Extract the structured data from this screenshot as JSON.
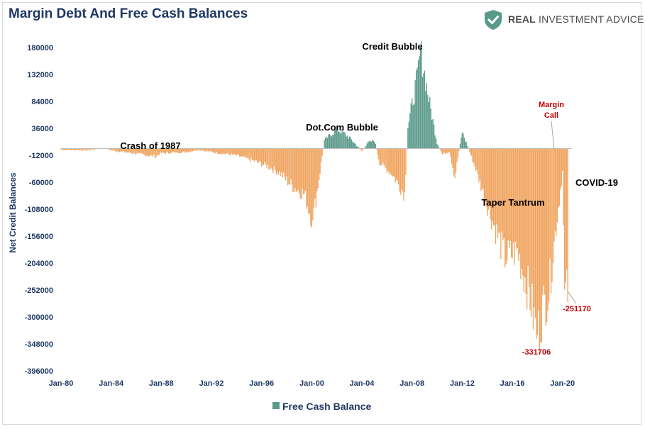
{
  "title": "Margin Debt And Free Cash Balances",
  "logo": {
    "word1": "REAL",
    "word2": "INVESTMENT ADVICE",
    "icon": "shield-check-icon"
  },
  "colors": {
    "positive": "#5a9a8a",
    "negative": "#f0a35e",
    "title": "#1f3864",
    "annotation_red": "#c00000"
  },
  "chart_data": {
    "type": "bar",
    "title": "Margin Debt And Free Cash Balances",
    "xlabel": "",
    "ylabel": "Net Credit Balances",
    "ylim": [
      -396000,
      180000
    ],
    "yticks": [
      "180000",
      "132000",
      "84000",
      "36000",
      "-12000",
      "-60000",
      "-108000",
      "-156000",
      "-204000",
      "-252000",
      "-300000",
      "-348000",
      "-396000"
    ],
    "xticks": [
      "Jan-80",
      "Jan-84",
      "Jan-88",
      "Jan-92",
      "Jan-96",
      "Jan-00",
      "Jan-04",
      "Jan-08",
      "Jan-12",
      "Jan-16",
      "Jan-20"
    ],
    "x_start": "Jan-80",
    "x_end": "Jun-20",
    "frequency": "monthly",
    "grid": false,
    "legend": {
      "position": "bottom",
      "entries": [
        "Free Cash Balance"
      ]
    },
    "series": [
      {
        "name": "Free Cash Balance",
        "anchors": [
          [
            "1980-01",
            -2000
          ],
          [
            "1982-01",
            -3000
          ],
          [
            "1983-06",
            1000
          ],
          [
            "1984-01",
            -3000
          ],
          [
            "1986-06",
            -10000
          ],
          [
            "1987-08",
            -14000
          ],
          [
            "1987-12",
            -8000
          ],
          [
            "1990-01",
            -6000
          ],
          [
            "1991-01",
            -2000
          ],
          [
            "1992-01",
            -6000
          ],
          [
            "1994-01",
            -12000
          ],
          [
            "1995-06",
            -22000
          ],
          [
            "1996-06",
            -30000
          ],
          [
            "1997-06",
            -42000
          ],
          [
            "1998-06",
            -65000
          ],
          [
            "1999-06",
            -80000
          ],
          [
            "2000-02",
            -128000
          ],
          [
            "2000-04",
            -100000
          ],
          [
            "2000-09",
            -40000
          ],
          [
            "2001-01",
            15000
          ],
          [
            "2002-01",
            35000
          ],
          [
            "2002-06",
            30000
          ],
          [
            "2003-01",
            20000
          ],
          [
            "2003-06",
            10000
          ],
          [
            "2004-01",
            -5000
          ],
          [
            "2004-06",
            10000
          ],
          [
            "2005-01",
            15000
          ],
          [
            "2005-06",
            -25000
          ],
          [
            "2006-06",
            -45000
          ],
          [
            "2007-06",
            -80000
          ],
          [
            "2007-09",
            40000
          ],
          [
            "2008-06",
            130000
          ],
          [
            "2008-09",
            180000
          ],
          [
            "2009-06",
            80000
          ],
          [
            "2010-01",
            10000
          ],
          [
            "2010-06",
            -10000
          ],
          [
            "2011-01",
            -5000
          ],
          [
            "2011-06",
            -50000
          ],
          [
            "2012-01",
            30000
          ],
          [
            "2012-06",
            5000
          ],
          [
            "2013-01",
            -30000
          ],
          [
            "2014-01",
            -100000
          ],
          [
            "2015-06",
            -190000
          ],
          [
            "2016-06",
            -180000
          ],
          [
            "2017-06",
            -260000
          ],
          [
            "2018-01",
            -331706
          ],
          [
            "2018-06",
            -280000
          ],
          [
            "2018-12",
            -250000
          ],
          [
            "2019-06",
            -150000
          ],
          [
            "2020-01",
            -40000
          ],
          [
            "2020-03",
            -251170
          ],
          [
            "2020-06",
            -251170
          ]
        ]
      }
    ],
    "annotations": [
      {
        "text": "Crash of 1987",
        "color": "black"
      },
      {
        "text": "Dot.Com Bubble",
        "color": "black"
      },
      {
        "text": "Credit Bubble",
        "color": "black"
      },
      {
        "text": "Taper Tantrum",
        "color": "black"
      },
      {
        "text": "COVID-19",
        "color": "black"
      },
      {
        "text": "Margin",
        "color": "red"
      },
      {
        "text": "Call",
        "color": "red"
      },
      {
        "text": "-331706",
        "color": "red"
      },
      {
        "text": "-251170",
        "color": "red"
      }
    ]
  }
}
